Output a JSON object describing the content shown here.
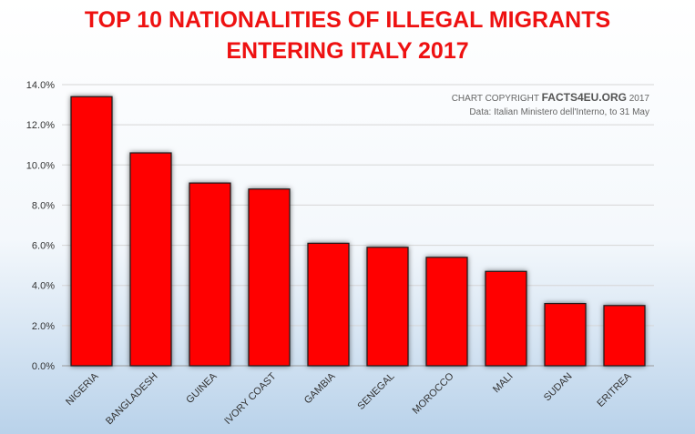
{
  "chart_data": {
    "type": "bar",
    "title": [
      "TOP 10 NATIONALITIES OF ILLEGAL MIGRANTS",
      "ENTERING ITALY 2017"
    ],
    "categories": [
      "NIGERIA",
      "BANGLADESH",
      "GUINEA",
      "IVORY COAST",
      "GAMBIA",
      "SENEGAL",
      "MOROCCO",
      "MALI",
      "SUDAN",
      "ERITREA"
    ],
    "values": [
      13.4,
      10.6,
      9.1,
      8.8,
      6.1,
      5.9,
      5.4,
      4.7,
      3.1,
      3.0
    ],
    "y_ticks": [
      "0.0%",
      "2.0%",
      "4.0%",
      "6.0%",
      "8.0%",
      "10.0%",
      "12.0%",
      "14.0%"
    ],
    "ylim": [
      0,
      14
    ],
    "grid": true,
    "bar_color": "#ff0000",
    "title_color": "#ee1111",
    "copyright": {
      "prefix": "CHART COPYRIGHT ",
      "brand": "FACTS4EU.ORG",
      "suffix": " 2017",
      "source": "Data: Italian Ministero dell'Interno, to 31 May"
    }
  }
}
